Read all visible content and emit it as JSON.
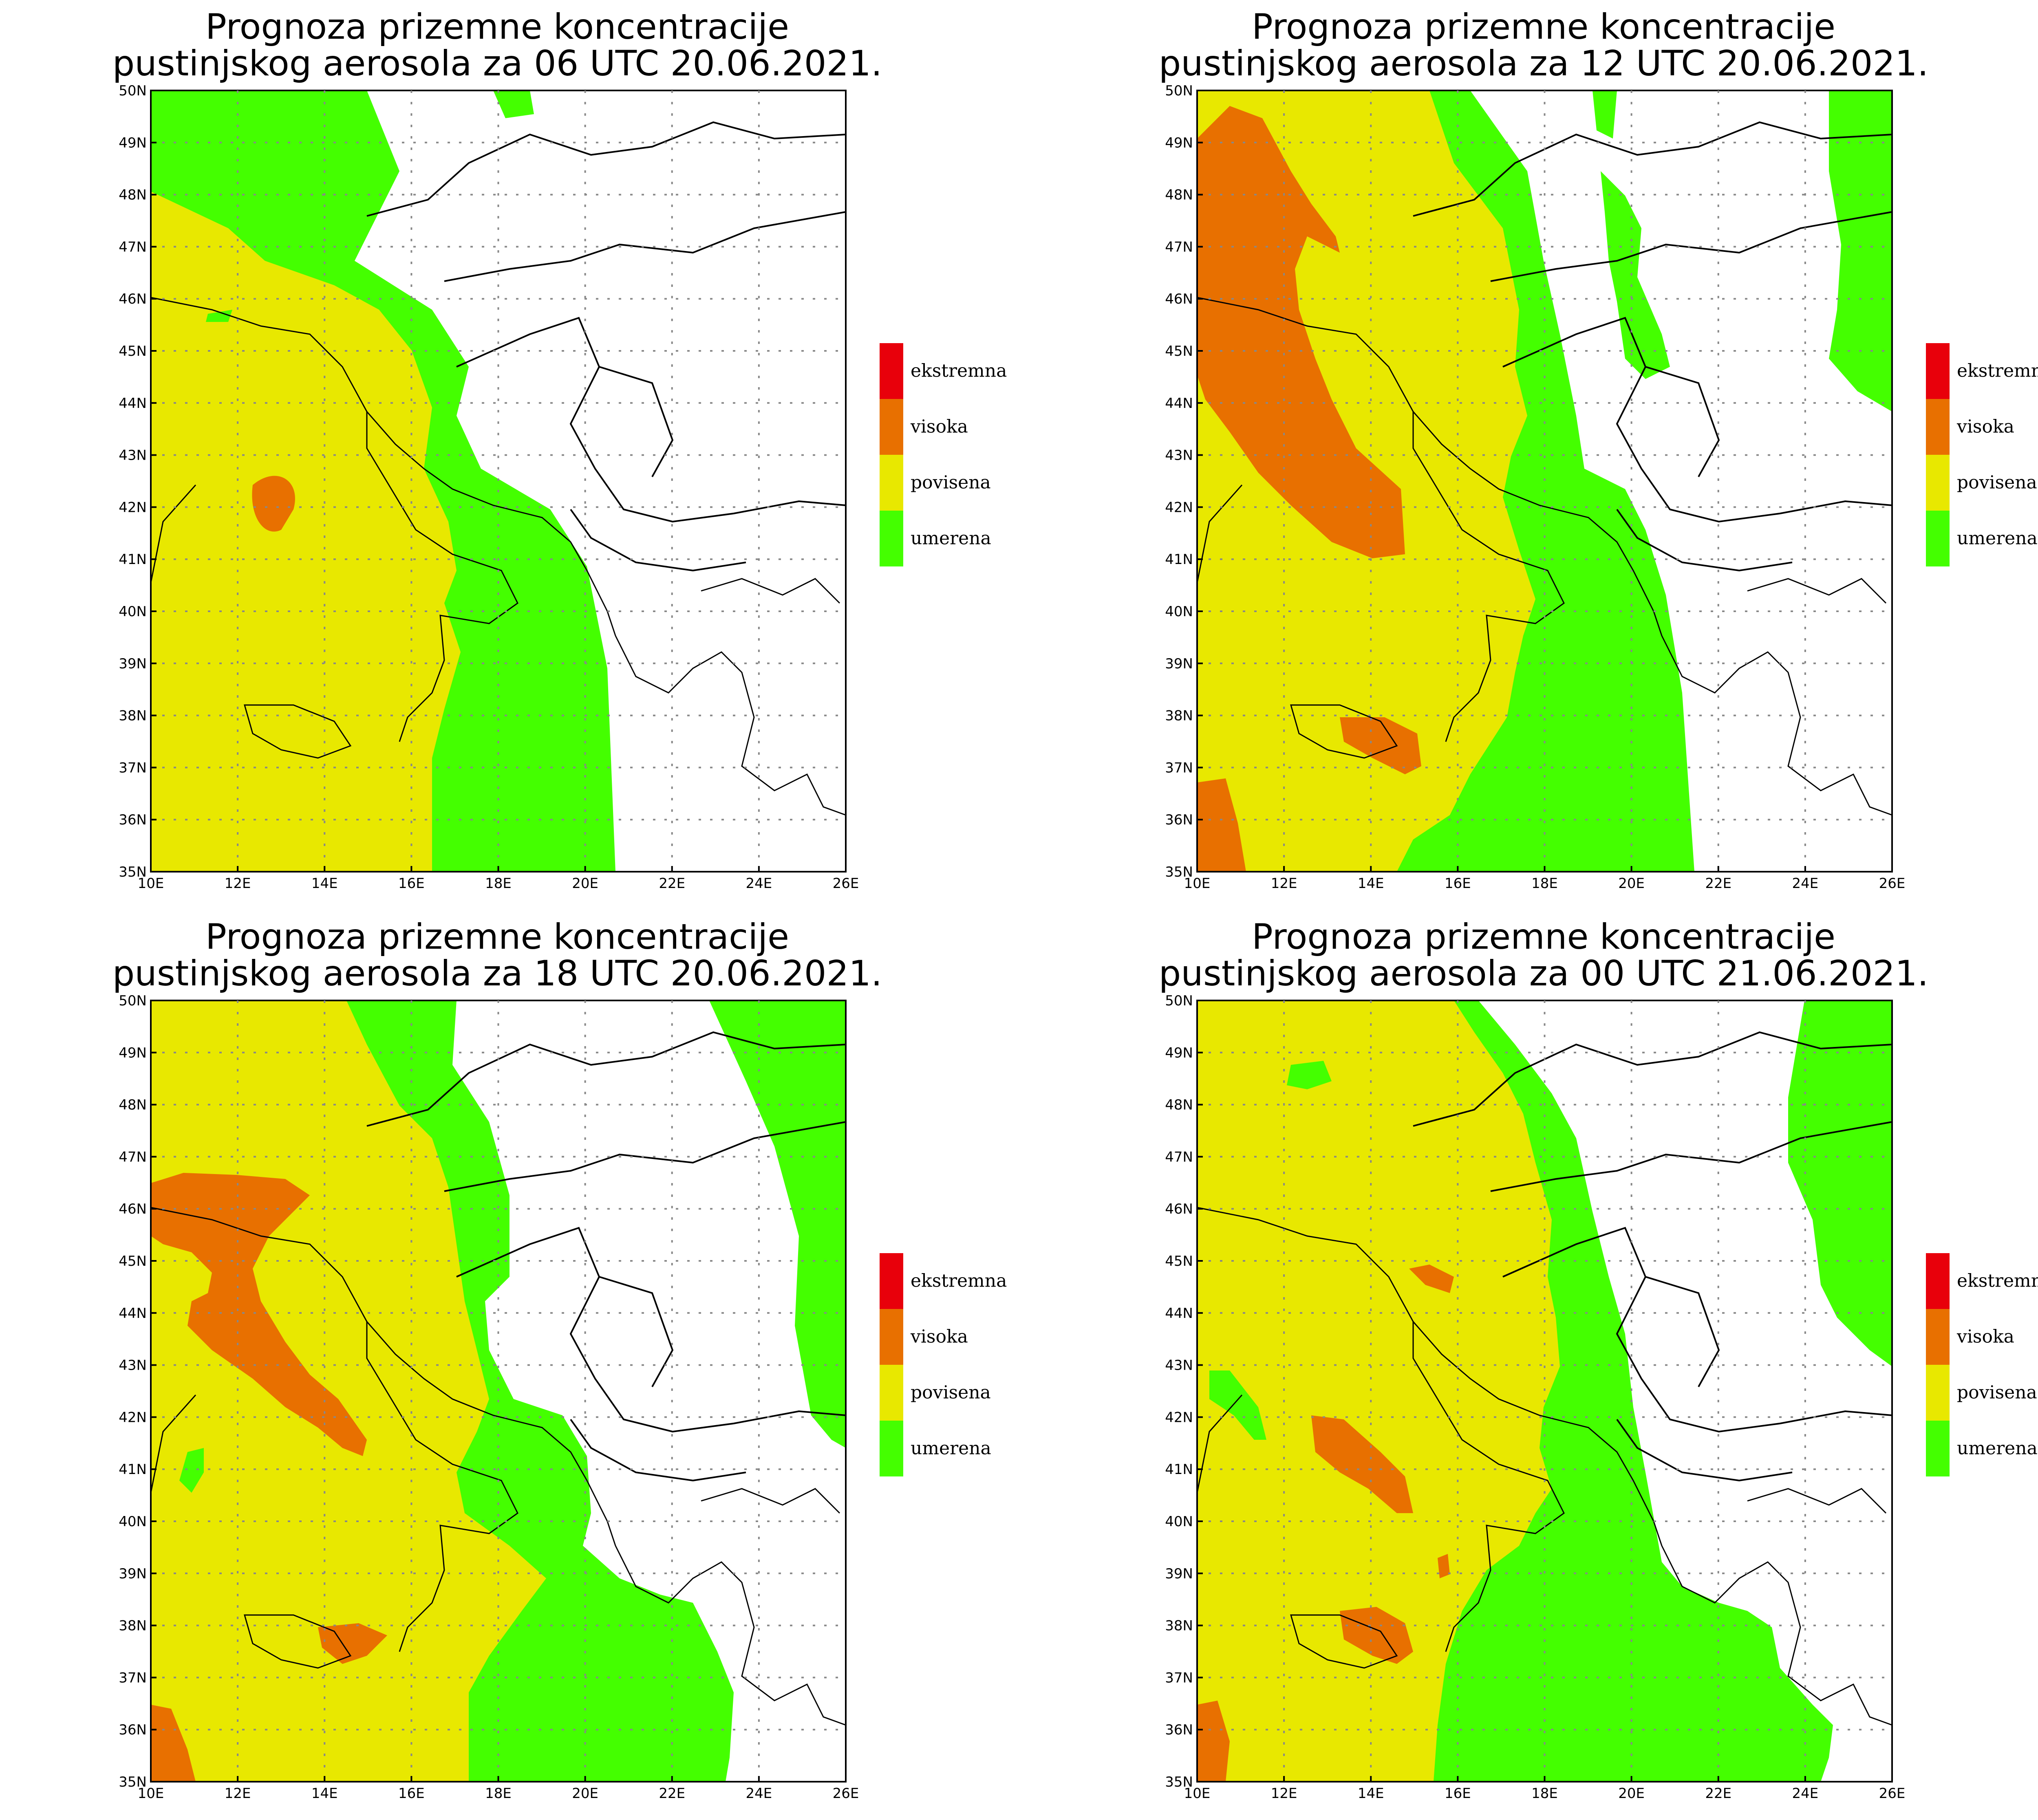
{
  "colors": {
    "ekstremna": "#e8000b",
    "visoka": "#e87000",
    "povisena": "#e8e800",
    "umerena": "#44ff00"
  },
  "legend_items": [
    {
      "key": "ekstremna",
      "label": "ekstremna"
    },
    {
      "key": "visoka",
      "label": "visoka"
    },
    {
      "key": "povisena",
      "label": "povisena"
    },
    {
      "key": "umerena",
      "label": "umerena"
    }
  ],
  "axes": {
    "lat_labels": [
      "50N",
      "49N",
      "48N",
      "47N",
      "46N",
      "45N",
      "44N",
      "43N",
      "42N",
      "41N",
      "40N",
      "39N",
      "38N",
      "37N",
      "36N",
      "35N"
    ],
    "lon_labels": [
      "10E",
      "12E",
      "14E",
      "16E",
      "18E",
      "20E",
      "22E",
      "24E",
      "26E"
    ]
  },
  "panels": [
    {
      "title_line1": "Prognoza prizemne koncentracije",
      "title_line2": "pustinjskog aerosola za 06 UTC 20.06.2021."
    },
    {
      "title_line1": "Prognoza prizemne koncentracije",
      "title_line2": "pustinjskog aerosola za 12 UTC 20.06.2021."
    },
    {
      "title_line1": "Prognoza prizemne koncentracije",
      "title_line2": "pustinjskog aerosola za 18 UTC 20.06.2021."
    },
    {
      "title_line1": "Prognoza prizemne koncentracije",
      "title_line2": "pustinjskog aerosola za 00 UTC 21.06.2021."
    }
  ]
}
